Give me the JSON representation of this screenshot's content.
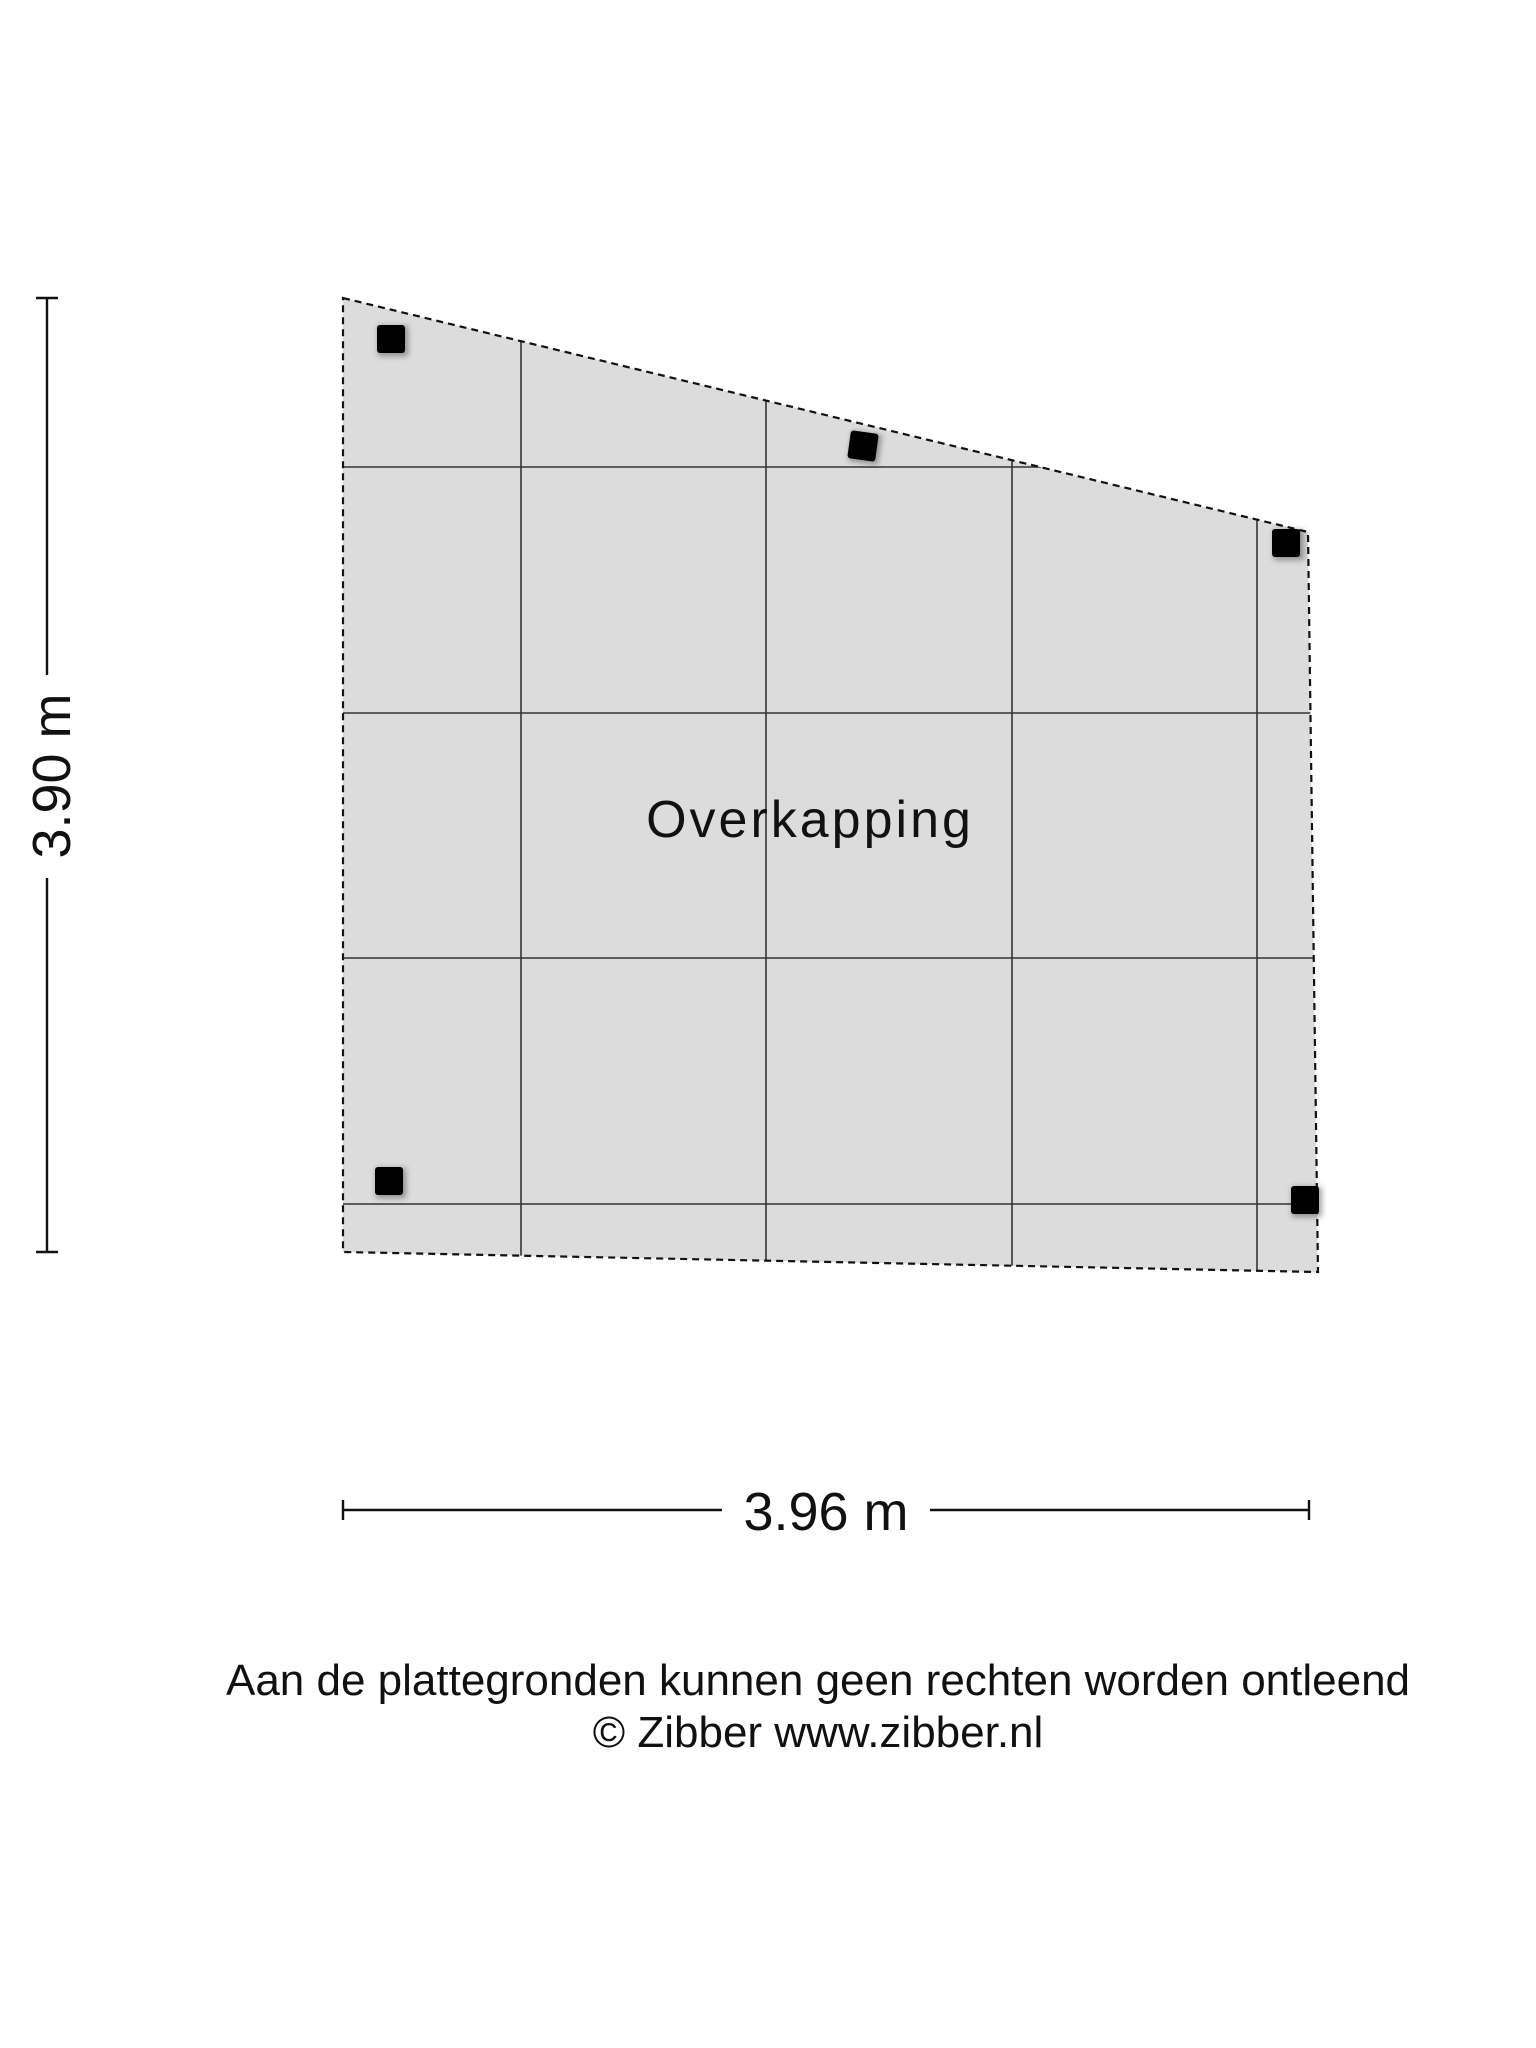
{
  "room": {
    "name": "Overkapping",
    "fill_color": "#dcdcdc",
    "grid_color": "#333333",
    "outline_color": "#111111",
    "post_color": "#000000"
  },
  "dimensions": {
    "height_label": "3.90 m",
    "width_label": "3.96 m"
  },
  "footer": {
    "disclaimer": "Aan de plattegronden kunnen geen rechten worden ontleend",
    "copyright": "© Zibber www.zibber.nl"
  }
}
